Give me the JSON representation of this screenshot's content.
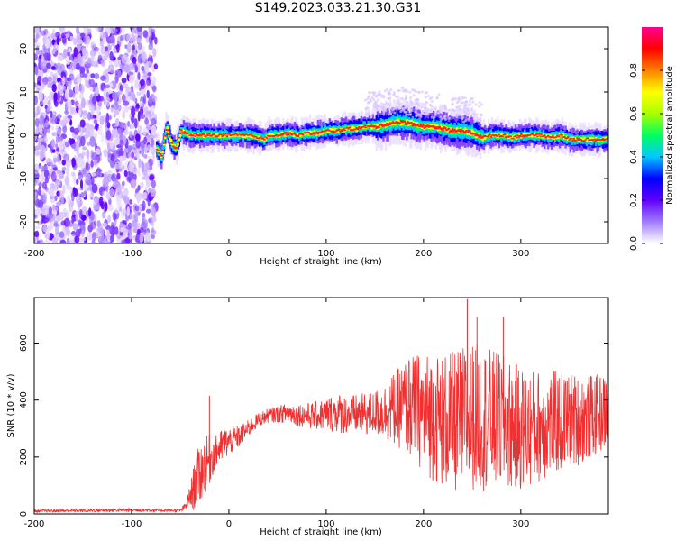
{
  "title": "S149.2023.033.21.30.G31",
  "chart_data": [
    {
      "type": "heatmap",
      "title": "S149.2023.033.21.30.G31",
      "xlabel": "Height of straight line (km)",
      "ylabel": "Frequency (Hz)",
      "xlim": [
        -200,
        390
      ],
      "ylim": [
        -25,
        25
      ],
      "xticks": [
        -200,
        -100,
        0,
        100,
        200,
        300
      ],
      "yticks": [
        -20,
        -10,
        0,
        10,
        20
      ],
      "grid": false,
      "colorbar": {
        "label": "Normalized spectral amplitude",
        "range": [
          0.0,
          1.0
        ],
        "ticks": [
          0.0,
          0.2,
          0.4,
          0.6,
          0.8
        ],
        "colors": [
          "#ffffff",
          "#a07cff",
          "#6000ff",
          "#0000ff",
          "#00c8ff",
          "#00ff60",
          "#aaff00",
          "#ffff00",
          "#ff8000",
          "#ff0000",
          "#ff0090"
        ]
      },
      "noise_region_x": [
        -200,
        -75
      ],
      "ridge": {
        "x": [
          -75,
          -70,
          -65,
          -60,
          -55,
          -50,
          -40,
          -30,
          -20,
          -10,
          0,
          10,
          20,
          30,
          35,
          40,
          50,
          60,
          70,
          80,
          90,
          100,
          110,
          120,
          130,
          140,
          150,
          160,
          170,
          180,
          190,
          200,
          210,
          220,
          230,
          240,
          250,
          260,
          270,
          280,
          290,
          300,
          310,
          320,
          330,
          340,
          350,
          360,
          370,
          380,
          390
        ],
        "frequency": [
          -3,
          -5,
          2,
          -2,
          -3,
          1,
          0,
          0,
          0,
          0,
          0,
          0,
          0,
          -0.5,
          -1,
          0,
          0,
          0.5,
          0,
          0.5,
          0.5,
          1,
          1,
          1.5,
          1.5,
          2,
          2,
          2.5,
          3,
          3,
          2.5,
          2,
          2,
          1.5,
          1,
          1,
          0.5,
          -0.5,
          0,
          0,
          -0.5,
          0,
          0,
          0,
          -0.5,
          0,
          -1,
          -1,
          -1,
          -1,
          -1
        ]
      }
    },
    {
      "type": "line",
      "xlabel": "Height of straight line (km)",
      "ylabel": "SNR (10 * v/v)",
      "xlim": [
        -200,
        390
      ],
      "ylim": [
        0,
        760
      ],
      "xticks": [
        -200,
        -100,
        0,
        100,
        200,
        300
      ],
      "yticks": [
        0,
        200,
        400,
        600
      ],
      "grid": false,
      "series": [
        {
          "color": "#f03030",
          "envelope_x": [
            -200,
            -150,
            -100,
            -60,
            -50,
            -45,
            -40,
            -35,
            -30,
            -25,
            -20,
            -15,
            -10,
            -5,
            0,
            10,
            20,
            30,
            40,
            50,
            60,
            70,
            80,
            90,
            100,
            110,
            120,
            130,
            140,
            150,
            160,
            170,
            180,
            190,
            200,
            210,
            220,
            230,
            240,
            250,
            260,
            270,
            280,
            290,
            300,
            310,
            320,
            330,
            340,
            350,
            360,
            370,
            380,
            390
          ],
          "envelope_mean": [
            10,
            12,
            14,
            12,
            12,
            25,
            60,
            100,
            140,
            170,
            190,
            210,
            230,
            245,
            255,
            270,
            300,
            330,
            345,
            350,
            355,
            350,
            345,
            345,
            350,
            355,
            350,
            350,
            350,
            355,
            360,
            370,
            380,
            370,
            360,
            340,
            330,
            320,
            330,
            345,
            340,
            330,
            320,
            310,
            300,
            300,
            310,
            320,
            320,
            330,
            330,
            340,
            350,
            360
          ],
          "envelope_spread": [
            5,
            6,
            6,
            5,
            5,
            15,
            40,
            90,
            110,
            100,
            90,
            60,
            60,
            60,
            50,
            40,
            30,
            25,
            25,
            30,
            35,
            40,
            45,
            50,
            60,
            70,
            70,
            70,
            75,
            80,
            100,
            130,
            160,
            190,
            210,
            230,
            240,
            250,
            260,
            260,
            260,
            250,
            240,
            230,
            220,
            210,
            200,
            190,
            180,
            170,
            160,
            150,
            140,
            130
          ],
          "peaks": [
            {
              "x": -20,
              "y": 415
            },
            {
              "x": 185,
              "y": 540
            },
            {
              "x": 245,
              "y": 755
            },
            {
              "x": 255,
              "y": 690
            },
            {
              "x": 282,
              "y": 690
            }
          ]
        }
      ]
    }
  ]
}
